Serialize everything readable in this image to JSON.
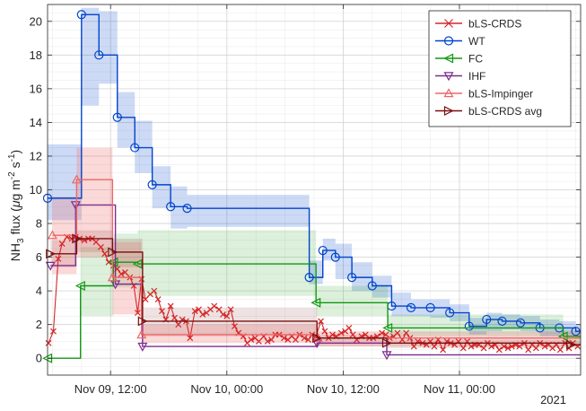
{
  "chart_data": {
    "type": "line",
    "ylabel_parts": {
      "main": "NH",
      "sub": "3",
      "after_sub": " flux (",
      "mu": "μ",
      "unit_g": "g m",
      "exp1": "-2",
      "unit_s": " s",
      "exp2": "-1",
      "close": ")"
    },
    "x_unit": "hours",
    "xlim": [
      5.5,
      60.5
    ],
    "ylim": [
      -1,
      21
    ],
    "x_ticks": [
      {
        "value": 12,
        "label": "Nov 09, 12:00"
      },
      {
        "value": 24,
        "label": "Nov 10, 00:00"
      },
      {
        "value": 36,
        "label": "Nov 10, 12:00"
      },
      {
        "value": 48,
        "label": "Nov 11, 00:00"
      }
    ],
    "x_year_label": "2021",
    "y_ticks": [
      0,
      2,
      4,
      6,
      8,
      10,
      12,
      14,
      16,
      18,
      20
    ],
    "grid": true,
    "minor_grid": true,
    "legend_position": "top-right",
    "series": [
      {
        "name": "bLS-CRDS",
        "color": "#d62728",
        "marker": "x",
        "step": false,
        "points": [
          [
            5.6,
            0.9
          ],
          [
            6.1,
            1.6
          ],
          [
            6.6,
            5.9
          ],
          [
            7.0,
            6.8
          ],
          [
            7.5,
            7.2
          ],
          [
            8.0,
            7.1
          ],
          [
            8.4,
            7.2
          ],
          [
            8.8,
            7.1
          ],
          [
            9.3,
            7.0
          ],
          [
            9.7,
            7.1
          ],
          [
            10.1,
            7.1
          ],
          [
            10.5,
            6.9
          ],
          [
            11.0,
            6.6
          ],
          [
            11.4,
            6.2
          ],
          [
            11.8,
            5.7
          ],
          [
            12.3,
            5.5
          ],
          [
            12.7,
            5.3
          ],
          [
            13.1,
            5.0
          ],
          [
            13.5,
            5.1
          ],
          [
            14.0,
            4.8
          ],
          [
            14.4,
            4.3
          ],
          [
            14.8,
            2.7
          ],
          [
            15.2,
            4.7
          ],
          [
            15.6,
            3.5
          ],
          [
            16.1,
            3.8
          ],
          [
            16.5,
            4.0
          ],
          [
            16.9,
            3.5
          ],
          [
            17.3,
            2.8
          ],
          [
            17.7,
            2.3
          ],
          [
            18.2,
            3.1
          ],
          [
            18.6,
            2.4
          ],
          [
            19.0,
            2.0
          ],
          [
            19.4,
            2.3
          ],
          [
            19.8,
            2.2
          ],
          [
            20.2,
            1.2
          ],
          [
            20.7,
            2.8
          ],
          [
            21.1,
            2.9
          ],
          [
            21.5,
            2.6
          ],
          [
            21.9,
            2.7
          ],
          [
            22.3,
            2.9
          ],
          [
            22.7,
            3.1
          ],
          [
            23.2,
            2.9
          ],
          [
            23.6,
            2.6
          ],
          [
            24.0,
            2.5
          ],
          [
            24.4,
            2.9
          ],
          [
            24.8,
            1.9
          ],
          [
            25.2,
            1.5
          ],
          [
            25.7,
            1.3
          ],
          [
            26.1,
            0.9
          ],
          [
            26.5,
            1.1
          ],
          [
            26.9,
            1.2
          ],
          [
            27.3,
            1.0
          ],
          [
            27.8,
            1.3
          ],
          [
            28.2,
            1.0
          ],
          [
            28.6,
            1.1
          ],
          [
            29.0,
            1.4
          ],
          [
            29.4,
            1.4
          ],
          [
            29.9,
            1.2
          ],
          [
            30.3,
            1.1
          ],
          [
            30.7,
            1.3
          ],
          [
            31.1,
            1.1
          ],
          [
            31.5,
            1.4
          ],
          [
            32.0,
            1.2
          ],
          [
            32.4,
            1.1
          ],
          [
            32.8,
            1.4
          ],
          [
            33.2,
            1.3
          ],
          [
            33.7,
            2.2
          ],
          [
            34.1,
            1.6
          ],
          [
            34.5,
            1.2
          ],
          [
            34.9,
            1.4
          ],
          [
            35.3,
            1.3
          ],
          [
            35.8,
            1.5
          ],
          [
            36.2,
            1.6
          ],
          [
            36.6,
            1.8
          ],
          [
            37.0,
            1.4
          ],
          [
            37.4,
            1.1
          ],
          [
            37.9,
            1.3
          ],
          [
            38.3,
            1.4
          ],
          [
            38.7,
            1.2
          ],
          [
            39.1,
            1.2
          ],
          [
            39.5,
            1.3
          ],
          [
            40.0,
            1.5
          ],
          [
            40.4,
            1.4
          ],
          [
            40.8,
            1.2
          ],
          [
            41.2,
            1.3
          ],
          [
            41.6,
            1.5
          ],
          [
            42.1,
            1.1
          ],
          [
            42.5,
            1.5
          ],
          [
            42.9,
            1.2
          ],
          [
            43.3,
            0.7
          ],
          [
            43.7,
            1.0
          ],
          [
            44.2,
            0.9
          ],
          [
            44.6,
            0.8
          ],
          [
            45.0,
            1.0
          ],
          [
            45.4,
            0.7
          ],
          [
            45.8,
            1.1
          ],
          [
            46.3,
            0.5
          ],
          [
            46.7,
            1.0
          ],
          [
            47.1,
            0.9
          ],
          [
            47.5,
            0.8
          ],
          [
            47.9,
            1.0
          ],
          [
            48.4,
            0.6
          ],
          [
            48.8,
            1.0
          ],
          [
            49.2,
            0.7
          ],
          [
            49.6,
            0.8
          ],
          [
            50.0,
            0.8
          ],
          [
            50.5,
            0.6
          ],
          [
            50.9,
            0.9
          ],
          [
            51.3,
            0.7
          ],
          [
            51.7,
            0.8
          ],
          [
            52.1,
            0.5
          ],
          [
            52.6,
            0.7
          ],
          [
            53.0,
            0.6
          ],
          [
            53.4,
            0.7
          ],
          [
            53.8,
            0.8
          ],
          [
            54.2,
            0.7
          ],
          [
            54.7,
            0.9
          ],
          [
            55.1,
            0.5
          ],
          [
            55.5,
            0.8
          ],
          [
            55.9,
            0.6
          ],
          [
            56.3,
            0.9
          ],
          [
            56.8,
            0.7
          ],
          [
            57.2,
            0.8
          ],
          [
            57.6,
            0.6
          ],
          [
            58.0,
            0.8
          ],
          [
            58.4,
            0.5
          ],
          [
            58.9,
            0.9
          ],
          [
            59.3,
            0.6
          ],
          [
            59.7,
            0.9
          ],
          [
            60.2,
            0.7
          ]
        ]
      },
      {
        "name": "WT",
        "color": "#0044cc",
        "marker": "o",
        "step": true,
        "band_alpha": 0.2,
        "steps": [
          [
            5.5,
            9.5,
            8.2,
            12.7
          ],
          [
            9.0,
            20.4,
            15.0,
            20.8
          ],
          [
            10.8,
            18.0,
            16.3,
            20.6
          ],
          [
            12.7,
            14.3,
            12.5,
            15.8
          ],
          [
            14.5,
            12.5,
            11.0,
            14.1
          ],
          [
            16.3,
            10.3,
            8.9,
            11.4
          ],
          [
            18.2,
            9.0,
            7.7,
            10.2
          ],
          [
            19.9,
            8.9,
            7.8,
            9.7
          ],
          [
            32.5,
            4.8,
            4.4,
            5.8
          ],
          [
            33.9,
            6.4,
            5.8,
            7.1
          ],
          [
            35.2,
            6.0,
            4.7,
            6.8
          ],
          [
            36.9,
            4.8,
            4.0,
            5.7
          ],
          [
            39.0,
            4.3,
            3.6,
            4.9
          ],
          [
            41.0,
            3.1,
            2.5,
            3.9
          ],
          [
            43.0,
            3.0,
            2.5,
            3.5
          ],
          [
            45.0,
            3.0,
            2.4,
            3.5
          ],
          [
            47.0,
            2.7,
            2.2,
            3.2
          ],
          [
            49.0,
            1.9,
            1.4,
            2.4
          ],
          [
            50.8,
            2.3,
            1.6,
            2.7
          ],
          [
            52.4,
            2.2,
            1.7,
            2.6
          ],
          [
            54.3,
            2.1,
            1.6,
            2.5
          ],
          [
            56.3,
            1.8,
            1.3,
            2.3
          ],
          [
            58.3,
            1.8,
            1.3,
            2.2
          ],
          [
            60.0,
            1.6,
            1.2,
            2.0
          ]
        ]
      },
      {
        "name": "FC",
        "color": "#119911",
        "marker": "<",
        "step": true,
        "band_alpha": 0.15,
        "steps": [
          [
            5.5,
            0.0,
            0.0,
            0.0
          ],
          [
            8.9,
            4.3,
            2.5,
            6.6
          ],
          [
            12.3,
            5.7,
            4.2,
            7.4
          ],
          [
            14.8,
            5.6,
            3.7,
            7.6
          ],
          [
            33.2,
            3.3,
            2.5,
            4.3
          ],
          [
            40.6,
            1.8,
            1.3,
            2.6
          ],
          [
            58.7,
            1.3,
            0.8,
            1.7
          ]
        ]
      },
      {
        "name": "IHF",
        "color": "#7b2d8e",
        "marker": "v",
        "step": true,
        "band_alpha": 0.0,
        "steps": [
          [
            5.8,
            5.5,
            5.5,
            5.5
          ],
          [
            8.4,
            9.1,
            9.1,
            9.1
          ],
          [
            12.5,
            4.4,
            4.4,
            4.4
          ],
          [
            15.3,
            0.7,
            0.7,
            0.7
          ],
          [
            33.3,
            0.9,
            0.9,
            0.9
          ],
          [
            40.5,
            0.2,
            0.2,
            0.2
          ]
        ]
      },
      {
        "name": "bLS-Impinger",
        "color": "#ee6666",
        "marker": "^",
        "step": true,
        "band_alpha": 0.25,
        "steps": [
          [
            6.0,
            7.3,
            5.0,
            9.6
          ],
          [
            8.5,
            10.6,
            6.0,
            12.5
          ],
          [
            12.2,
            4.8,
            2.6,
            6.9
          ],
          [
            15.2,
            1.4,
            0.9,
            2.0
          ],
          [
            33.4,
            1.2,
            0.7,
            1.6
          ]
        ]
      },
      {
        "name": "bLS-CRDS avg",
        "color": "#7a0f0f",
        "marker": ">",
        "step": true,
        "band_alpha": 0.12,
        "steps": [
          [
            5.8,
            6.2,
            5.4,
            7.0
          ],
          [
            8.5,
            7.1,
            6.3,
            7.6
          ],
          [
            12.2,
            6.3,
            5.4,
            7.1
          ],
          [
            15.3,
            2.2,
            1.3,
            3.0
          ],
          [
            33.3,
            1.2,
            0.7,
            1.4
          ],
          [
            40.5,
            0.9,
            0.6,
            1.1
          ],
          [
            59.5,
            0.8,
            0.6,
            1.0
          ]
        ]
      }
    ]
  }
}
